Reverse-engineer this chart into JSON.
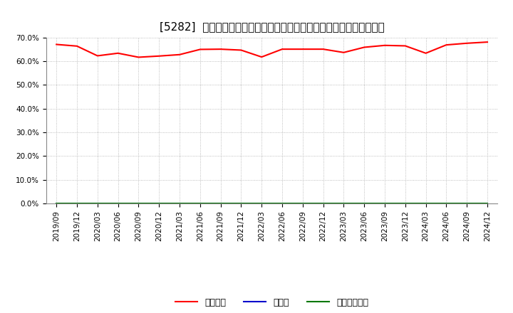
{
  "title": "[5282]  自己資本、のれん、繰延税金資産の総資産に対する比率の推移",
  "x_labels": [
    "2019/09",
    "2019/12",
    "2020/03",
    "2020/06",
    "2020/09",
    "2020/12",
    "2021/03",
    "2021/06",
    "2021/09",
    "2021/12",
    "2022/03",
    "2022/06",
    "2022/09",
    "2022/12",
    "2023/03",
    "2023/06",
    "2023/09",
    "2023/12",
    "2024/03",
    "2024/06",
    "2024/09",
    "2024/12"
  ],
  "equity_ratio": [
    0.671,
    0.664,
    0.623,
    0.634,
    0.617,
    0.622,
    0.628,
    0.65,
    0.651,
    0.647,
    0.618,
    0.651,
    0.651,
    0.651,
    0.637,
    0.659,
    0.667,
    0.665,
    0.634,
    0.669,
    0.676,
    0.681
  ],
  "noren_ratio": [
    0.0,
    0.0,
    0.0,
    0.0,
    0.0,
    0.0,
    0.0,
    0.0,
    0.0,
    0.0,
    0.0,
    0.0,
    0.0,
    0.0,
    0.0,
    0.0,
    0.0,
    0.0,
    0.0,
    0.0,
    0.0,
    0.0
  ],
  "deferred_tax_ratio": [
    0.0,
    0.0,
    0.0,
    0.0,
    0.0,
    0.0,
    0.0,
    0.0,
    0.0,
    0.0,
    0.0,
    0.0,
    0.0,
    0.0,
    0.0,
    0.0,
    0.0,
    0.0,
    0.0,
    0.0,
    0.0,
    0.0
  ],
  "equity_color": "#ff0000",
  "noren_color": "#0000cc",
  "deferred_color": "#007700",
  "background_color": "#ffffff",
  "plot_bg_color": "#ffffff",
  "grid_color": "#aaaaaa",
  "ylim": [
    0.0,
    0.7
  ],
  "yticks": [
    0.0,
    0.1,
    0.2,
    0.3,
    0.4,
    0.5,
    0.6,
    0.7
  ],
  "legend_labels": [
    "自己資本",
    "のれん",
    "繰延税金資産"
  ],
  "title_fontsize": 11,
  "tick_fontsize": 7.5,
  "legend_fontsize": 9
}
